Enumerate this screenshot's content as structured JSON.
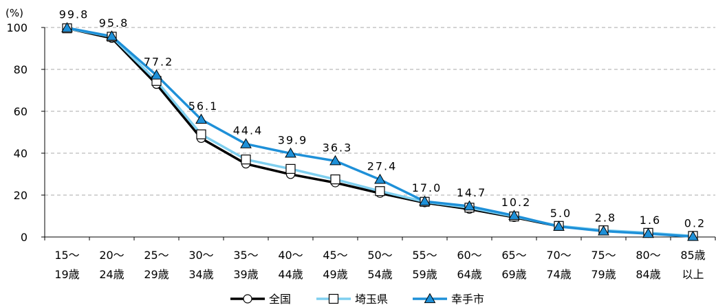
{
  "chart_data": {
    "type": "line",
    "unit_label": "(%)",
    "ylim": [
      0,
      100
    ],
    "y_ticks": [
      0,
      20,
      40,
      60,
      80,
      100
    ],
    "grid": true,
    "legend_position": "bottom",
    "categories": [
      [
        "15〜",
        "19歳"
      ],
      [
        "20〜",
        "24歳"
      ],
      [
        "25〜",
        "29歳"
      ],
      [
        "30〜",
        "34歳"
      ],
      [
        "35〜",
        "39歳"
      ],
      [
        "40〜",
        "44歳"
      ],
      [
        "45〜",
        "49歳"
      ],
      [
        "50〜",
        "54歳"
      ],
      [
        "55〜",
        "59歳"
      ],
      [
        "60〜",
        "64歳"
      ],
      [
        "65〜",
        "69歳"
      ],
      [
        "70〜",
        "74歳"
      ],
      [
        "75〜",
        "79歳"
      ],
      [
        "80〜",
        "84歳"
      ],
      [
        "85歳",
        "以上"
      ]
    ],
    "series": [
      {
        "name": "全国",
        "color": "#000000",
        "marker": "circle",
        "values": [
          99.6,
          94.9,
          72.9,
          47.1,
          34.9,
          29.9,
          25.9,
          20.9,
          16.4,
          13.3,
          9.4,
          5.1,
          3.0,
          1.8,
          0.4
        ]
      },
      {
        "name": "埼玉県",
        "color": "#7fcfef",
        "marker": "square",
        "values": [
          99.6,
          95.6,
          74.5,
          49.0,
          37.0,
          32.5,
          27.5,
          21.9,
          16.8,
          14.0,
          9.8,
          5.3,
          3.2,
          2.0,
          0.5
        ]
      },
      {
        "name": "幸手市",
        "color": "#1e90d8",
        "marker": "triangle",
        "values": [
          99.8,
          95.8,
          77.2,
          56.1,
          44.4,
          39.9,
          36.3,
          27.4,
          17.0,
          14.7,
          10.2,
          5.0,
          2.8,
          1.6,
          0.2
        ],
        "data_labels": [
          "99.8",
          "95.8",
          "77.2",
          "56.1",
          "44.4",
          "39.9",
          "36.3",
          "27.4",
          "17.0",
          "14.7",
          "10.2",
          "5.0",
          "2.8",
          "1.6",
          "0.2"
        ]
      }
    ]
  }
}
